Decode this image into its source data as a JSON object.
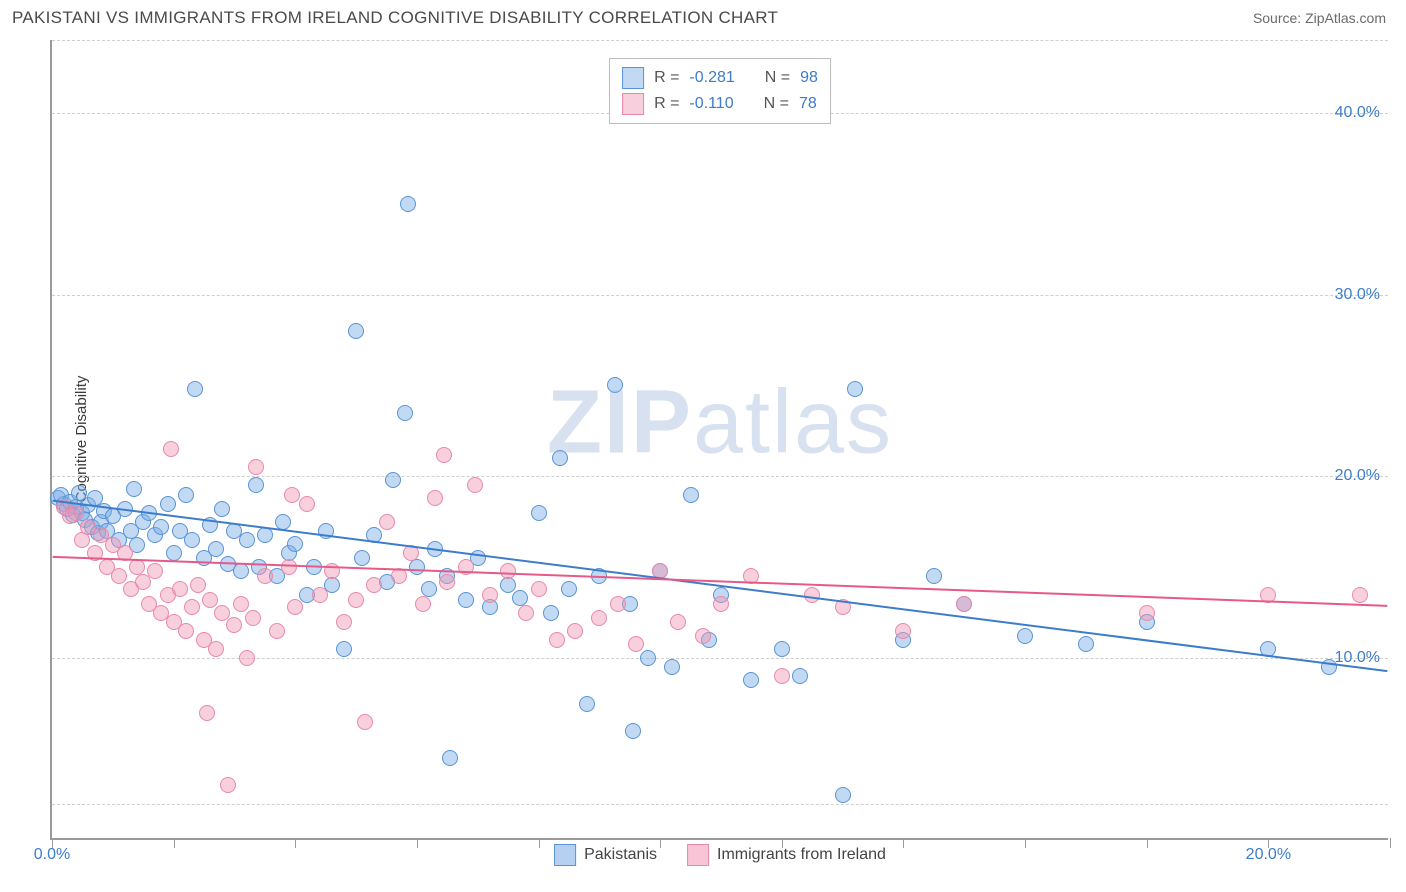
{
  "title": "PAKISTANI VS IMMIGRANTS FROM IRELAND COGNITIVE DISABILITY CORRELATION CHART",
  "source": "Source: ZipAtlas.com",
  "watermark_bold": "ZIP",
  "watermark_rest": "atlas",
  "chart": {
    "type": "scatter",
    "y_title": "Cognitive Disability",
    "background_color": "#ffffff",
    "grid_color": "#cfcfcf",
    "axis_color": "#9a9a9a",
    "tick_label_color": "#3d7cc9",
    "xlim": [
      0,
      22
    ],
    "ylim": [
      0,
      44
    ],
    "x_ticks": [
      0,
      2,
      4,
      6,
      8,
      10,
      12,
      14,
      16,
      18,
      20,
      22
    ],
    "x_tick_labels": {
      "0": "0.0%",
      "20": "20.0%"
    },
    "y_gridlines": [
      2,
      10,
      20,
      30,
      40,
      44
    ],
    "y_tick_labels": {
      "10": "10.0%",
      "20": "20.0%",
      "30": "30.0%",
      "40": "40.0%"
    },
    "marker_radius": 8,
    "marker_stroke_width": 1.5,
    "trend_line_width": 2,
    "series": [
      {
        "name": "Pakistanis",
        "fill_color": "rgba(120,170,230,0.45)",
        "stroke_color": "#5a94d6",
        "trend_color": "#3d7cc9",
        "R": "-0.281",
        "N": "98",
        "trend": {
          "x1": 0,
          "y1": 18.6,
          "x2": 22,
          "y2": 9.2
        },
        "points": [
          [
            0.1,
            18.8
          ],
          [
            0.2,
            18.5
          ],
          [
            0.15,
            19.0
          ],
          [
            0.25,
            18.2
          ],
          [
            0.3,
            18.6
          ],
          [
            0.35,
            17.9
          ],
          [
            0.4,
            18.3
          ],
          [
            0.45,
            19.1
          ],
          [
            0.5,
            18.0
          ],
          [
            0.55,
            17.6
          ],
          [
            0.6,
            18.4
          ],
          [
            0.65,
            17.2
          ],
          [
            0.7,
            18.8
          ],
          [
            0.75,
            16.9
          ],
          [
            0.8,
            17.5
          ],
          [
            0.85,
            18.1
          ],
          [
            0.9,
            17.0
          ],
          [
            1.0,
            17.8
          ],
          [
            1.1,
            16.5
          ],
          [
            1.2,
            18.2
          ],
          [
            1.3,
            17.0
          ],
          [
            1.35,
            19.3
          ],
          [
            1.4,
            16.2
          ],
          [
            1.5,
            17.5
          ],
          [
            1.6,
            18.0
          ],
          [
            1.7,
            16.8
          ],
          [
            1.8,
            17.2
          ],
          [
            1.9,
            18.5
          ],
          [
            2.0,
            15.8
          ],
          [
            2.1,
            17.0
          ],
          [
            2.2,
            19.0
          ],
          [
            2.3,
            16.5
          ],
          [
            2.35,
            24.8
          ],
          [
            2.5,
            15.5
          ],
          [
            2.6,
            17.3
          ],
          [
            2.7,
            16.0
          ],
          [
            2.8,
            18.2
          ],
          [
            2.9,
            15.2
          ],
          [
            3.0,
            17.0
          ],
          [
            3.1,
            14.8
          ],
          [
            3.2,
            16.5
          ],
          [
            3.35,
            19.5
          ],
          [
            3.4,
            15.0
          ],
          [
            3.5,
            16.8
          ],
          [
            3.7,
            14.5
          ],
          [
            3.8,
            17.5
          ],
          [
            3.9,
            15.8
          ],
          [
            4.0,
            16.3
          ],
          [
            4.2,
            13.5
          ],
          [
            4.3,
            15.0
          ],
          [
            4.5,
            17.0
          ],
          [
            4.6,
            14.0
          ],
          [
            4.8,
            10.5
          ],
          [
            5.0,
            28.0
          ],
          [
            5.1,
            15.5
          ],
          [
            5.3,
            16.8
          ],
          [
            5.5,
            14.2
          ],
          [
            5.6,
            19.8
          ],
          [
            5.8,
            23.5
          ],
          [
            5.85,
            35.0
          ],
          [
            6.0,
            15.0
          ],
          [
            6.2,
            13.8
          ],
          [
            6.3,
            16.0
          ],
          [
            6.5,
            14.5
          ],
          [
            6.55,
            4.5
          ],
          [
            6.8,
            13.2
          ],
          [
            7.0,
            15.5
          ],
          [
            7.2,
            12.8
          ],
          [
            7.5,
            14.0
          ],
          [
            7.7,
            13.3
          ],
          [
            8.0,
            18.0
          ],
          [
            8.2,
            12.5
          ],
          [
            8.35,
            21.0
          ],
          [
            8.5,
            13.8
          ],
          [
            8.8,
            7.5
          ],
          [
            9.0,
            14.5
          ],
          [
            9.25,
            25.0
          ],
          [
            9.5,
            13.0
          ],
          [
            9.55,
            6.0
          ],
          [
            9.8,
            10.0
          ],
          [
            10.0,
            14.8
          ],
          [
            10.2,
            9.5
          ],
          [
            10.5,
            19.0
          ],
          [
            10.8,
            11.0
          ],
          [
            11.0,
            13.5
          ],
          [
            11.5,
            8.8
          ],
          [
            12.0,
            10.5
          ],
          [
            12.3,
            9.0
          ],
          [
            13.0,
            2.5
          ],
          [
            13.2,
            24.8
          ],
          [
            14.0,
            11.0
          ],
          [
            14.5,
            14.5
          ],
          [
            15.0,
            13.0
          ],
          [
            16.0,
            11.2
          ],
          [
            17.0,
            10.8
          ],
          [
            18.0,
            12.0
          ],
          [
            20.0,
            10.5
          ],
          [
            21.0,
            9.5
          ]
        ]
      },
      {
        "name": "Immigrants from Ireland",
        "fill_color": "rgba(240,150,180,0.45)",
        "stroke_color": "#e889aa",
        "trend_color": "#e65a8a",
        "R": "-0.110",
        "N": "78",
        "trend": {
          "x1": 0,
          "y1": 15.5,
          "x2": 22,
          "y2": 12.8
        },
        "points": [
          [
            0.2,
            18.3
          ],
          [
            0.3,
            17.8
          ],
          [
            0.4,
            18.0
          ],
          [
            0.5,
            16.5
          ],
          [
            0.6,
            17.2
          ],
          [
            0.7,
            15.8
          ],
          [
            0.8,
            16.8
          ],
          [
            0.9,
            15.0
          ],
          [
            1.0,
            16.2
          ],
          [
            1.1,
            14.5
          ],
          [
            1.2,
            15.8
          ],
          [
            1.3,
            13.8
          ],
          [
            1.4,
            15.0
          ],
          [
            1.5,
            14.2
          ],
          [
            1.6,
            13.0
          ],
          [
            1.7,
            14.8
          ],
          [
            1.8,
            12.5
          ],
          [
            1.9,
            13.5
          ],
          [
            1.95,
            21.5
          ],
          [
            2.0,
            12.0
          ],
          [
            2.1,
            13.8
          ],
          [
            2.2,
            11.5
          ],
          [
            2.3,
            12.8
          ],
          [
            2.4,
            14.0
          ],
          [
            2.5,
            11.0
          ],
          [
            2.55,
            7.0
          ],
          [
            2.6,
            13.2
          ],
          [
            2.7,
            10.5
          ],
          [
            2.8,
            12.5
          ],
          [
            2.9,
            3.0
          ],
          [
            3.0,
            11.8
          ],
          [
            3.1,
            13.0
          ],
          [
            3.2,
            10.0
          ],
          [
            3.3,
            12.2
          ],
          [
            3.35,
            20.5
          ],
          [
            3.5,
            14.5
          ],
          [
            3.7,
            11.5
          ],
          [
            3.9,
            15.0
          ],
          [
            3.95,
            19.0
          ],
          [
            4.0,
            12.8
          ],
          [
            4.2,
            18.5
          ],
          [
            4.4,
            13.5
          ],
          [
            4.6,
            14.8
          ],
          [
            4.8,
            12.0
          ],
          [
            5.0,
            13.2
          ],
          [
            5.15,
            6.5
          ],
          [
            5.3,
            14.0
          ],
          [
            5.5,
            17.5
          ],
          [
            5.7,
            14.5
          ],
          [
            5.9,
            15.8
          ],
          [
            6.1,
            13.0
          ],
          [
            6.3,
            18.8
          ],
          [
            6.45,
            21.2
          ],
          [
            6.5,
            14.2
          ],
          [
            6.8,
            15.0
          ],
          [
            6.95,
            19.5
          ],
          [
            7.2,
            13.5
          ],
          [
            7.5,
            14.8
          ],
          [
            7.8,
            12.5
          ],
          [
            8.0,
            13.8
          ],
          [
            8.3,
            11.0
          ],
          [
            8.6,
            11.5
          ],
          [
            9.0,
            12.2
          ],
          [
            9.3,
            13.0
          ],
          [
            9.6,
            10.8
          ],
          [
            10.0,
            14.8
          ],
          [
            10.3,
            12.0
          ],
          [
            10.7,
            11.2
          ],
          [
            11.0,
            13.0
          ],
          [
            11.5,
            14.5
          ],
          [
            12.0,
            9.0
          ],
          [
            12.5,
            13.5
          ],
          [
            13.0,
            12.8
          ],
          [
            14.0,
            11.5
          ],
          [
            15.0,
            13.0
          ],
          [
            18.0,
            12.5
          ],
          [
            20.0,
            13.5
          ],
          [
            21.5,
            13.5
          ]
        ]
      }
    ]
  },
  "legend_bottom": {
    "items": [
      {
        "label": "Pakistanis",
        "fill": "rgba(120,170,230,0.55)",
        "stroke": "#5a94d6"
      },
      {
        "label": "Immigrants from Ireland",
        "fill": "rgba(240,150,180,0.55)",
        "stroke": "#e889aa"
      }
    ]
  }
}
